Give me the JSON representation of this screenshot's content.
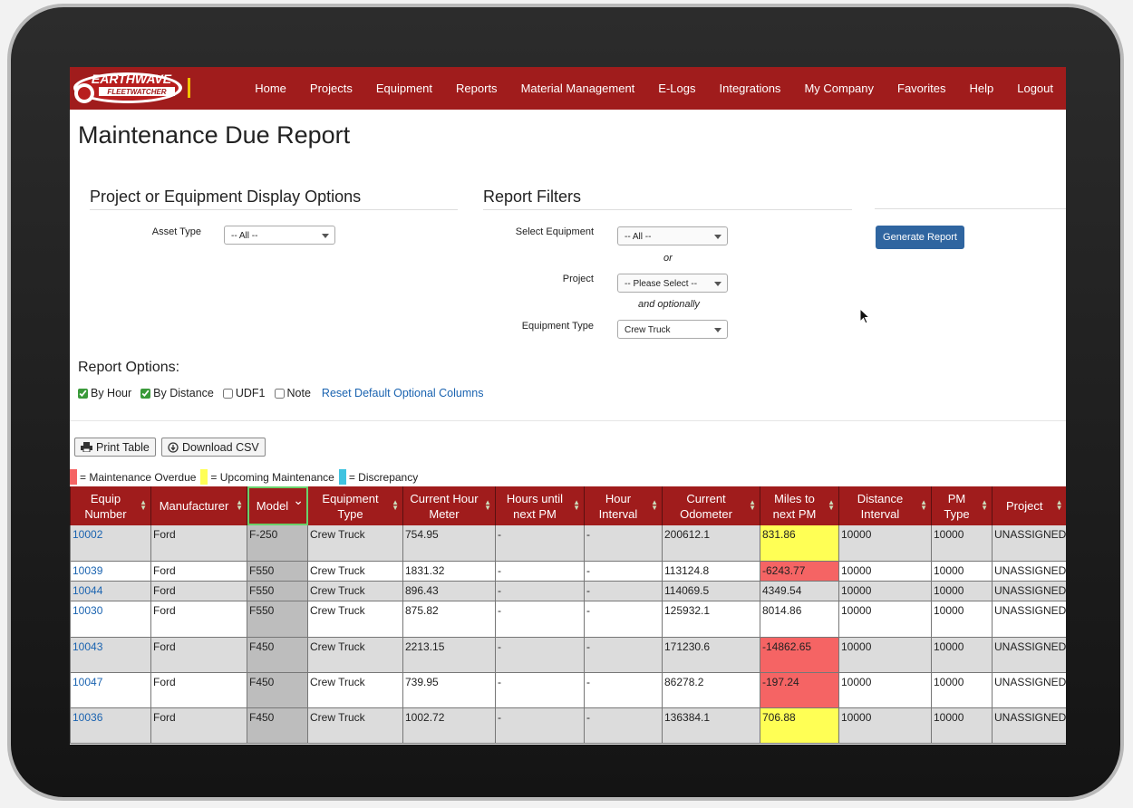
{
  "logo": {
    "name": "EARTHWAVE",
    "tagline": "FLEETWATCHER"
  },
  "nav": [
    "Home",
    "Projects",
    "Equipment",
    "Reports",
    "Material Management",
    "E-Logs",
    "Integrations",
    "My Company",
    "Favorites",
    "Help",
    "Logout"
  ],
  "page_title": "Maintenance Due Report",
  "display_options": {
    "title": "Project or Equipment Display Options",
    "asset_type_label": "Asset Type",
    "asset_type_value": "-- All --"
  },
  "filters": {
    "title": "Report Filters",
    "select_equipment_label": "Select Equipment",
    "select_equipment_value": "-- All --",
    "or": "or",
    "project_label": "Project",
    "project_value": "-- Please Select --",
    "optionally": "and optionally",
    "equipment_type_label": "Equipment Type",
    "equipment_type_value": "Crew Truck"
  },
  "generate_button": "Generate Report",
  "report_options": {
    "title": "Report Options:",
    "checkboxes": [
      {
        "label": "By Hour",
        "checked": true
      },
      {
        "label": "By Distance",
        "checked": true
      },
      {
        "label": "UDF1",
        "checked": false
      },
      {
        "label": "Note",
        "checked": false
      }
    ],
    "reset_link": "Reset Default Optional Columns"
  },
  "buttons": [
    "Print Table",
    "Download CSV"
  ],
  "legend": [
    {
      "label": "= Maintenance Overdue",
      "color": "#f56464"
    },
    {
      "label": "= Upcoming Maintenance",
      "color": "#ffff55"
    },
    {
      "label": "= Discrepancy",
      "color": "#3fc3e0"
    }
  ],
  "table": {
    "headers": [
      "Equip Number",
      "Manufacturer",
      "Model",
      "Equipment Type",
      "Current Hour Meter",
      "Hours until next PM",
      "Hour Interval",
      "Current Odometer",
      "Miles to next PM",
      "Distance Interval",
      "PM Type",
      "Project"
    ],
    "sorted_column": 2,
    "rows": [
      {
        "cells": [
          "10002",
          "Ford",
          "F-250",
          "Crew Truck",
          "754.95",
          "-",
          "-",
          "200612.1",
          "831.86",
          "10000",
          "10000",
          "UNASSIGNED"
        ],
        "miles_color": "#ffff55"
      },
      {
        "cells": [
          "10039",
          "Ford",
          "F550",
          "Crew Truck",
          "1831.32",
          "-",
          "-",
          "113124.8",
          "-6243.77",
          "10000",
          "10000",
          "UNASSIGNED"
        ],
        "miles_color": "#f56464"
      },
      {
        "cells": [
          "10044",
          "Ford",
          "F550",
          "Crew Truck",
          "896.43",
          "-",
          "-",
          "114069.5",
          "4349.54",
          "10000",
          "10000",
          "UNASSIGNED"
        ]
      },
      {
        "cells": [
          "10030",
          "Ford",
          "F550",
          "Crew Truck",
          "875.82",
          "-",
          "-",
          "125932.1",
          "8014.86",
          "10000",
          "10000",
          "UNASSIGNED"
        ]
      },
      {
        "cells": [
          "10043",
          "Ford",
          "F450",
          "Crew Truck",
          "2213.15",
          "-",
          "-",
          "171230.6",
          "-14862.65",
          "10000",
          "10000",
          "UNASSIGNED"
        ],
        "miles_color": "#f56464"
      },
      {
        "cells": [
          "10047",
          "Ford",
          "F450",
          "Crew Truck",
          "739.95",
          "-",
          "-",
          "86278.2",
          "-197.24",
          "10000",
          "10000",
          "UNASSIGNED"
        ],
        "miles_color": "#f56464"
      },
      {
        "cells": [
          "10036",
          "Ford",
          "F450",
          "Crew Truck",
          "1002.72",
          "-",
          "-",
          "136384.1",
          "706.88",
          "10000",
          "10000",
          "UNASSIGNED"
        ],
        "miles_color": "#ffff55"
      }
    ]
  }
}
